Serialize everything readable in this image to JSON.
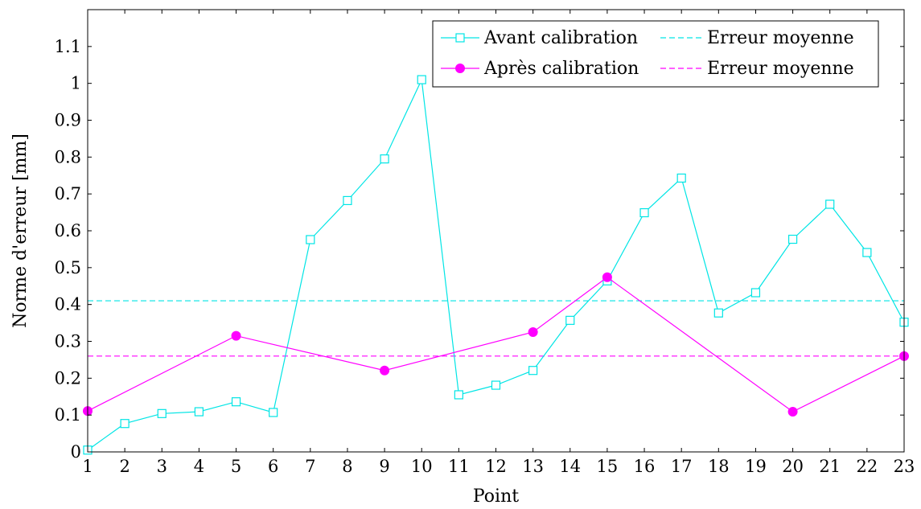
{
  "chart_data": {
    "type": "line",
    "xlabel": "Point",
    "ylabel": "Norme d'erreur [mm]",
    "xlim": [
      1,
      23
    ],
    "ylim": [
      0,
      1.2
    ],
    "x_ticks": [
      "1",
      "2",
      "3",
      "4",
      "5",
      "6",
      "7",
      "8",
      "9",
      "10",
      "11",
      "12",
      "13",
      "14",
      "15",
      "16",
      "17",
      "18",
      "19",
      "20",
      "21",
      "22",
      "23"
    ],
    "y_ticks": [
      "0",
      "0.1",
      "0.2",
      "0.3",
      "0.4",
      "0.5",
      "0.6",
      "0.7",
      "0.8",
      "0.9",
      "1",
      "1.1"
    ],
    "grid": false,
    "legend_position": "top-right",
    "series": [
      {
        "name": "Avant calibration",
        "color": "#00e5e5",
        "marker": "open-square",
        "x": [
          1,
          2,
          3,
          4,
          5,
          6,
          7,
          8,
          9,
          10,
          11,
          12,
          13,
          14,
          15,
          16,
          17,
          18,
          19,
          20,
          21,
          22,
          23
        ],
        "y": [
          0.005,
          0.077,
          0.104,
          0.109,
          0.136,
          0.107,
          0.576,
          0.682,
          0.795,
          1.01,
          0.155,
          0.181,
          0.221,
          0.357,
          0.464,
          0.649,
          0.743,
          0.377,
          0.432,
          0.577,
          0.672,
          0.541,
          0.352
        ]
      },
      {
        "name": "Après calibration",
        "color": "#ff00ff",
        "marker": "filled-circle",
        "x": [
          1,
          5,
          9,
          13,
          15,
          20,
          23
        ],
        "y": [
          0.111,
          0.315,
          0.221,
          0.325,
          0.474,
          0.109,
          0.26
        ]
      }
    ],
    "reference_lines": [
      {
        "name": "Erreur moyenne",
        "color": "#00e5e5",
        "style": "dashed",
        "y": 0.41
      },
      {
        "name": "Erreur moyenne",
        "color": "#ff00ff",
        "style": "dashed",
        "y": 0.26
      }
    ]
  }
}
